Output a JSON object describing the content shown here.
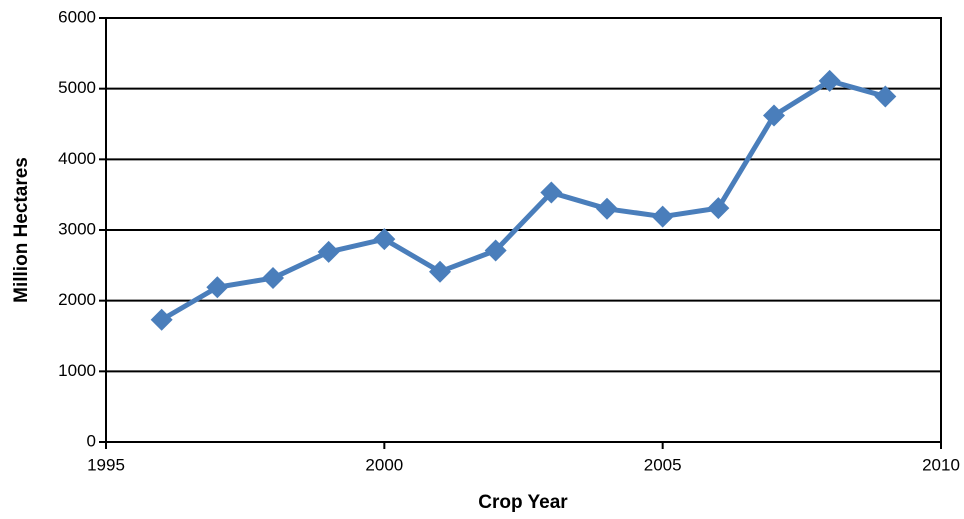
{
  "chart_data": {
    "type": "line",
    "xlabel": "Crop Year",
    "ylabel": "Million Hectares",
    "x": [
      1996,
      1997,
      1998,
      1999,
      2000,
      2001,
      2002,
      2003,
      2004,
      2005,
      2006,
      2007,
      2008,
      2009
    ],
    "values": [
      1730,
      2190,
      2320,
      2690,
      2870,
      2410,
      2710,
      3530,
      3300,
      3190,
      3310,
      4620,
      5110,
      4890
    ],
    "color": "#4a7ebb",
    "xlim": [
      1995,
      2010
    ],
    "xticks": [
      1995,
      2000,
      2005,
      2010
    ],
    "ylim": [
      0,
      6000
    ],
    "yticks": [
      0,
      1000,
      2000,
      3000,
      4000,
      5000,
      6000
    ],
    "grid": true
  }
}
